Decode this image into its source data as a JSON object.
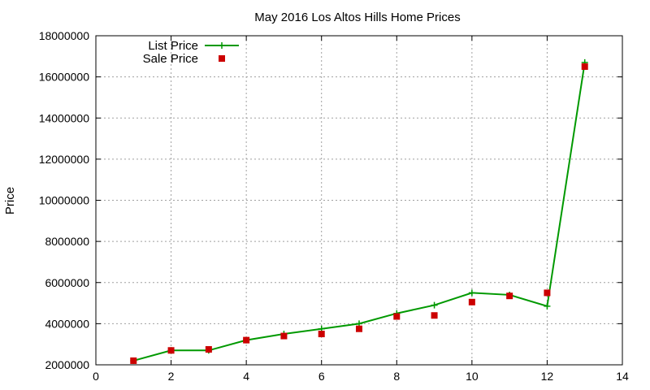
{
  "chart_data": {
    "type": "line",
    "title": "May 2016 Los Altos Hills Home Prices",
    "xlabel": "",
    "ylabel": "Price",
    "xlim": [
      0,
      14
    ],
    "ylim": [
      2000000,
      18000000
    ],
    "x_ticks": [
      0,
      2,
      4,
      6,
      8,
      10,
      12,
      14
    ],
    "y_ticks": [
      2000000,
      4000000,
      6000000,
      8000000,
      10000000,
      12000000,
      14000000,
      16000000,
      18000000
    ],
    "grid": true,
    "legend_position": "top-left",
    "series": [
      {
        "name": "List Price",
        "style": "line-with-plus-markers",
        "color": "#009900",
        "x": [
          1,
          2,
          3,
          4,
          5,
          6,
          7,
          8,
          9,
          10,
          11,
          12,
          13
        ],
        "values": [
          2200000,
          2700000,
          2700000,
          3200000,
          3500000,
          3750000,
          4000000,
          4500000,
          4900000,
          5500000,
          5400000,
          4850000,
          16700000
        ]
      },
      {
        "name": "Sale Price",
        "style": "square-markers",
        "color": "#cc0000",
        "x": [
          1,
          2,
          3,
          4,
          5,
          6,
          7,
          8,
          9,
          10,
          11,
          12,
          13
        ],
        "values": [
          2200000,
          2700000,
          2750000,
          3200000,
          3400000,
          3500000,
          3750000,
          4350000,
          4400000,
          5050000,
          5350000,
          5500000,
          16500000
        ]
      }
    ]
  }
}
